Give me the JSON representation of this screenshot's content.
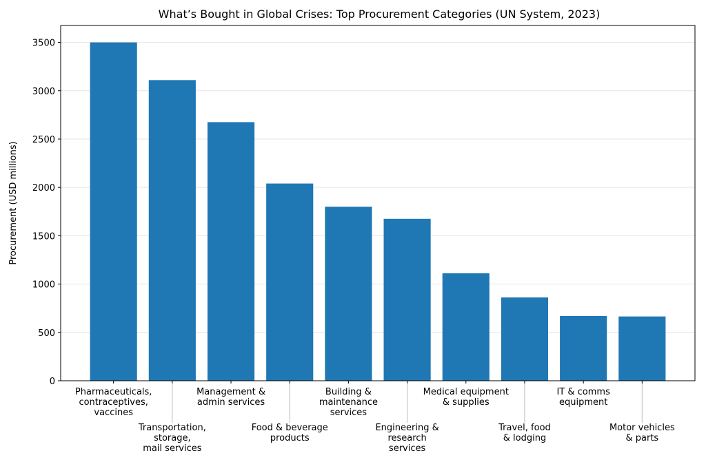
{
  "chart_data": {
    "type": "bar",
    "title": "What’s Bought in Global Crises: Top Procurement Categories (UN System, 2023)",
    "xlabel": "",
    "ylabel": "Procurement (USD millions)",
    "categories": [
      "Pharmaceuticals,\ncontraceptives,\nvaccines",
      "Transportation,\nstorage,\nmail services",
      "Management &\nadmin services",
      "Food & beverage\nproducts",
      "Building &\nmaintenance\nservices",
      "Engineering &\nresearch\nservices",
      "Medical equipment\n& supplies",
      "Travel, food\n& lodging",
      "IT & comms\nequipment",
      "Motor vehicles\n& parts"
    ],
    "values": [
      3500,
      3110,
      2675,
      2040,
      1800,
      1675,
      1112,
      862,
      670,
      665
    ],
    "ylim": [
      0,
      3675
    ],
    "yticks": [
      0,
      500,
      1000,
      1500,
      2000,
      2500,
      3000,
      3500
    ],
    "grid": "horizontal",
    "bar_color": "#1f77b4",
    "xtick_rotation_deg": 15
  }
}
